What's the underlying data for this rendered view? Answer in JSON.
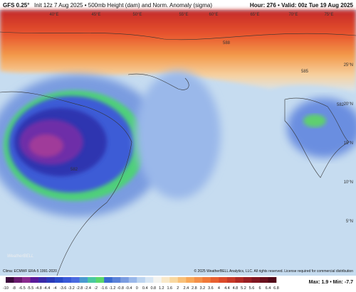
{
  "header": {
    "model": "GFS 0.25°",
    "title": "Init 12z 7 Aug 2025 • 500mb Height (dam) and Norm. Anomaly (sigma)",
    "valid": "Hour: 276 • Valid: 00z Tue 19 Aug 2025"
  },
  "map": {
    "lon_labels": [
      "40°E",
      "45°E",
      "50°E",
      "55°E",
      "60°E",
      "65°E",
      "70°E",
      "75°E"
    ],
    "lat_labels": [
      "25°N",
      "20°N",
      "15°N",
      "10°N",
      "5°N"
    ],
    "contour_labels": [
      "588",
      "585",
      "582",
      "582"
    ]
  },
  "footer": {
    "climo": "Clima: ECMWF ERA-5 1991-2020",
    "copyright": "© 2025 WeatherBELL Analytics, LLC. All rights reserved. License required for commercial distribution",
    "brand": "WeatherBELL",
    "maxmin": "Max: 1.9 • Min: -7.7"
  },
  "colorbar": {
    "labels": [
      "-10",
      "-8",
      "-6.5",
      "-5.5",
      "-4.8",
      "-4.4",
      "-4",
      "-3.6",
      "-3.2",
      "-2.8",
      "-2.4",
      "-2",
      "-1.6",
      "-1.2",
      "-0.8",
      "-0.4",
      "0",
      "0.4",
      "0.8",
      "1.2",
      "1.6",
      "2",
      "2.4",
      "2.8",
      "3.2",
      "3.6",
      "4",
      "4.4",
      "4.8",
      "5.2",
      "5.6",
      "6",
      "6.4",
      "6.8"
    ],
    "colors": [
      "#3c0a3c",
      "#6a1a6e",
      "#8a2a8e",
      "#5a1a9a",
      "#3a2aa8",
      "#2a3ab8",
      "#2a4ac8",
      "#3a5ad8",
      "#4a6ae0",
      "#4a9ad0",
      "#4ac8a0",
      "#5ad86a",
      "#3a6ad0",
      "#5a82d8",
      "#7a9ce0",
      "#9ab8ea",
      "#bcd4f0",
      "#d8e6f4",
      "#f4f4f0",
      "#f8e8c8",
      "#f8d8a0",
      "#f8c078",
      "#f8a858",
      "#f49048",
      "#f07838",
      "#e86030",
      "#dc4a2a",
      "#c83a28",
      "#b02a24",
      "#981e22",
      "#801620",
      "#6a101c",
      "#520a18"
    ]
  }
}
